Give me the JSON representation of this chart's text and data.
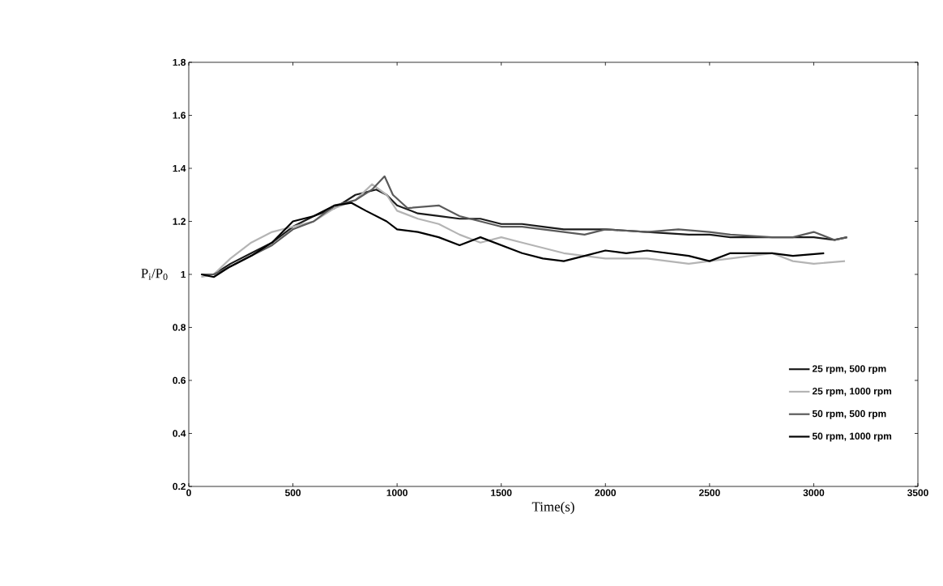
{
  "chart_data": {
    "type": "line",
    "xlabel": "Time(s)",
    "ylabel": "P$_{i}$/P$_{0}$",
    "xlim": [
      0,
      3500
    ],
    "xticks": [
      0,
      500,
      1000,
      1500,
      2000,
      2500,
      3000,
      3500
    ],
    "ylim": [
      0.2,
      1.8
    ],
    "yticks": [
      0.2,
      0.4,
      0.6,
      0.8,
      1,
      1.2,
      1.4,
      1.6,
      1.8
    ],
    "legend": "bottom right",
    "grid": false,
    "marker": "none",
    "line_style": "solid",
    "series": [
      {
        "name": "25 rpm, 500 rpm",
        "color": "#1a1a1a",
        "x": [
          60,
          120,
          200,
          300,
          400,
          500,
          600,
          700,
          800,
          900,
          950,
          1000,
          1100,
          1200,
          1300,
          1400,
          1500,
          1600,
          1700,
          1800,
          1900,
          2000,
          2200,
          2400,
          2500,
          2600,
          2800,
          3000,
          3100,
          3160
        ],
        "values": [
          1.0,
          1.0,
          1.04,
          1.08,
          1.12,
          1.18,
          1.22,
          1.25,
          1.3,
          1.32,
          1.3,
          1.26,
          1.23,
          1.22,
          1.21,
          1.21,
          1.19,
          1.19,
          1.18,
          1.17,
          1.17,
          1.17,
          1.16,
          1.15,
          1.15,
          1.14,
          1.14,
          1.14,
          1.13,
          1.14
        ]
      },
      {
        "name": "25 rpm, 1000 rpm",
        "color": "#b4b4b4",
        "x": [
          60,
          120,
          200,
          300,
          400,
          500,
          600,
          700,
          800,
          880,
          950,
          1000,
          1100,
          1200,
          1300,
          1400,
          1500,
          1600,
          1700,
          1800,
          1900,
          2000,
          2200,
          2400,
          2500,
          2600,
          2800,
          2900,
          3000,
          3150
        ],
        "values": [
          0.99,
          1.0,
          1.06,
          1.12,
          1.16,
          1.18,
          1.2,
          1.25,
          1.28,
          1.34,
          1.3,
          1.24,
          1.21,
          1.19,
          1.15,
          1.12,
          1.14,
          1.12,
          1.1,
          1.08,
          1.07,
          1.06,
          1.06,
          1.04,
          1.05,
          1.06,
          1.08,
          1.05,
          1.04,
          1.05
        ]
      },
      {
        "name": "50 rpm, 500 rpm",
        "color": "#5a5a5a",
        "x": [
          60,
          120,
          200,
          300,
          400,
          500,
          600,
          700,
          800,
          880,
          940,
          980,
          1050,
          1200,
          1300,
          1400,
          1500,
          1600,
          1700,
          1800,
          1900,
          2000,
          2200,
          2350,
          2500,
          2600,
          2800,
          2900,
          3000,
          3100,
          3160
        ],
        "values": [
          1.0,
          1.0,
          1.03,
          1.07,
          1.11,
          1.17,
          1.2,
          1.26,
          1.28,
          1.32,
          1.37,
          1.3,
          1.25,
          1.26,
          1.22,
          1.2,
          1.18,
          1.18,
          1.17,
          1.16,
          1.15,
          1.17,
          1.16,
          1.17,
          1.16,
          1.15,
          1.14,
          1.14,
          1.16,
          1.13,
          1.14
        ]
      },
      {
        "name": "50 rpm, 1000 rpm",
        "color": "#000000",
        "x": [
          60,
          120,
          200,
          300,
          400,
          500,
          600,
          700,
          780,
          850,
          950,
          1000,
          1100,
          1200,
          1300,
          1400,
          1500,
          1600,
          1700,
          1800,
          1900,
          2000,
          2100,
          2200,
          2400,
          2500,
          2600,
          2800,
          2900,
          3050
        ],
        "values": [
          1.0,
          0.99,
          1.03,
          1.07,
          1.12,
          1.2,
          1.22,
          1.26,
          1.27,
          1.24,
          1.2,
          1.17,
          1.16,
          1.14,
          1.11,
          1.14,
          1.11,
          1.08,
          1.06,
          1.05,
          1.07,
          1.09,
          1.08,
          1.09,
          1.07,
          1.05,
          1.08,
          1.08,
          1.07,
          1.08
        ]
      }
    ]
  }
}
